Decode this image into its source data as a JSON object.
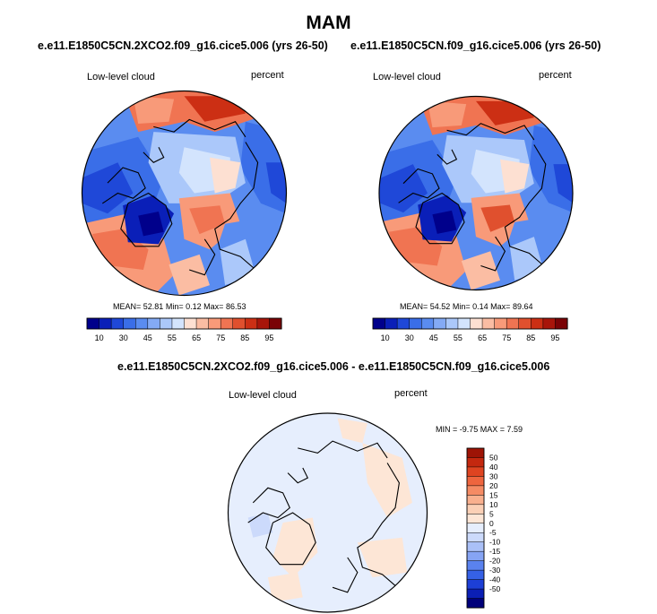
{
  "title": "MAM",
  "colors": {
    "blues": [
      "#00008b",
      "#0a1fb8",
      "#1f48d8",
      "#3a6ee8",
      "#5a8cf0",
      "#84aaf5",
      "#abc8fa",
      "#d3e4fd"
    ],
    "reds": [
      "#fde0d2",
      "#fbbda3",
      "#f89a79",
      "#f07452",
      "#e0502e",
      "#cc2f14",
      "#a8150a",
      "#7a0306"
    ],
    "diff_scale": [
      "#00007a",
      "#0b1fb5",
      "#1d3fd6",
      "#3561e6",
      "#5a82ef",
      "#86a4f4",
      "#aac0f7",
      "#ccdafb",
      "#e6eefd",
      "#fde6d6",
      "#fbd0b6",
      "#f9b08e",
      "#f58b64",
      "#ee653e",
      "#de4421",
      "#c4280f",
      "#9e1406"
    ],
    "coast": "#000000"
  },
  "chart_data": [
    {
      "type": "heatmap",
      "title": "e.e11.E1850C5CN.2XCO2.f09_g16.cice5.006 (yrs 26-50)",
      "left_label": "Low-level cloud",
      "right_label": "percent",
      "stats": {
        "mean_label": "MEAN=",
        "mean": "52.81",
        "min_label": "Min=",
        "min": "0.12",
        "max_label": "Max=",
        "max": "86.53"
      },
      "colorbar_ticks": [
        "10",
        "30",
        "45",
        "55",
        "65",
        "75",
        "85",
        "95"
      ],
      "projection": "north polar stereographic"
    },
    {
      "type": "heatmap",
      "title": "e.e11.E1850C5CN.f09_g16.cice5.006 (yrs 26-50)",
      "left_label": "Low-level cloud",
      "right_label": "percent",
      "stats": {
        "mean_label": "MEAN=",
        "mean": "54.52",
        "min_label": "Min=",
        "min": "0.14",
        "max_label": "Max=",
        "max": "89.64"
      },
      "colorbar_ticks": [
        "10",
        "30",
        "45",
        "55",
        "65",
        "75",
        "85",
        "95"
      ],
      "projection": "north polar stereographic"
    },
    {
      "type": "heatmap",
      "title": "e.e11.E1850C5CN.2XCO2.f09_g16.cice5.006 - e.e11.E1850C5CN.f09_g16.cice5.006",
      "left_label": "Low-level cloud",
      "right_label": "percent",
      "stats_text": "MIN = -9.75 MAX =  7.59",
      "colorbar_ticks": [
        "50",
        "40",
        "30",
        "20",
        "15",
        "10",
        "5",
        "0",
        "-5",
        "-10",
        "-15",
        "-20",
        "-30",
        "-40",
        "-50"
      ],
      "projection": "north polar stereographic"
    }
  ]
}
